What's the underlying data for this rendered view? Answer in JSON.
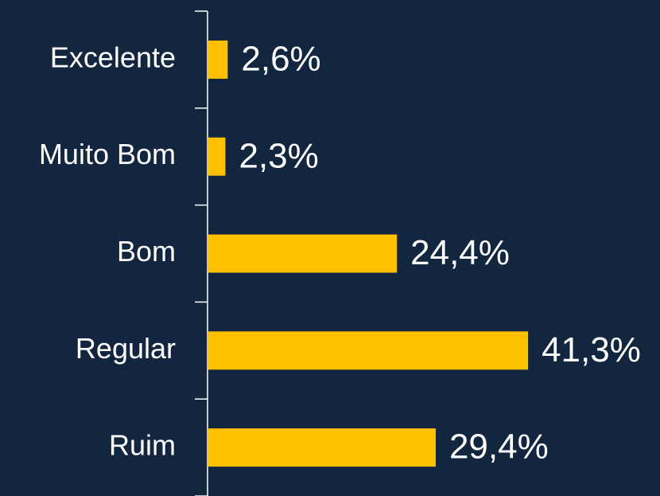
{
  "chart_data": {
    "type": "bar",
    "orientation": "horizontal",
    "categories": [
      "Excelente",
      "Muito Bom",
      "Bom",
      "Regular",
      "Ruim"
    ],
    "values": [
      2.6,
      2.3,
      24.4,
      41.3,
      29.4
    ],
    "value_labels": [
      "2,6%",
      "2,3%",
      "24,4%",
      "41,3%",
      "29,4%"
    ],
    "color": "#ffc000"
  }
}
